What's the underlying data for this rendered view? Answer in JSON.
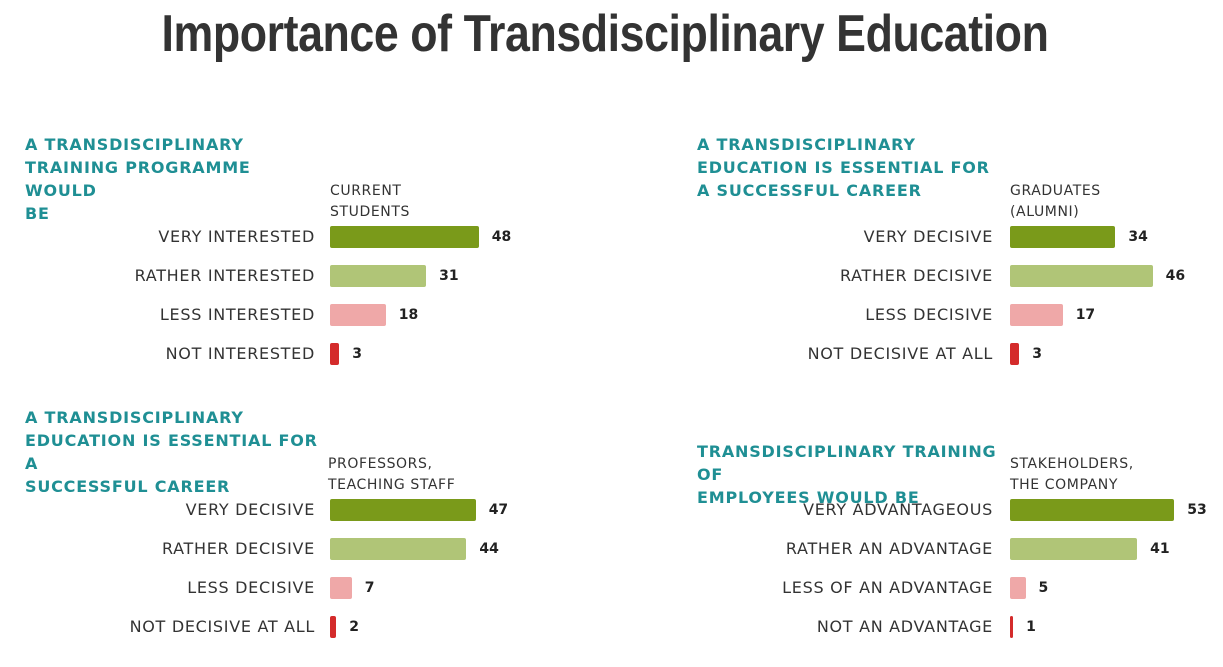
{
  "page": {
    "title": "Importance of Transdisciplinary Education"
  },
  "colors": {
    "very": "#7a9a1a",
    "rather": "#b0c577",
    "less": "#efa8a8",
    "not": "#d42b2b",
    "title_accent": "#1f8f94"
  },
  "panels": [
    {
      "title": "A TRANSDISCIPLINARY\nTRAINING PROGRAMME WOULD\nBE",
      "group": "CURRENT\nSTUDENTS",
      "chart_data": {
        "type": "bar",
        "title": "A TRANSDISCIPLINARY TRAINING PROGRAMME WOULD BE",
        "series": [
          {
            "name": "CURRENT STUDENTS",
            "values": [
              48,
              31,
              18,
              3
            ]
          }
        ],
        "categories": [
          "VERY INTERESTED",
          "RATHER INTERESTED",
          "LESS INTERESTED",
          "NOT INTERESTED"
        ],
        "values": [
          48,
          31,
          18,
          3
        ],
        "color_keys": [
          "very",
          "rather",
          "less",
          "not"
        ],
        "xlim": [
          0,
          55
        ]
      }
    },
    {
      "title": "A TRANSDISCIPLINARY\nEDUCATION IS ESSENTIAL FOR\nA SUCCESSFUL CAREER",
      "group": "GRADUATES\n(ALUMNI)",
      "chart_data": {
        "type": "bar",
        "title": "A TRANSDISCIPLINARY EDUCATION IS ESSENTIAL FOR A SUCCESSFUL CAREER",
        "series": [
          {
            "name": "GRADUATES (ALUMNI)",
            "values": [
              34,
              46,
              17,
              3
            ]
          }
        ],
        "categories": [
          "VERY DECISIVE",
          "RATHER DECISIVE",
          "LESS DECISIVE",
          "NOT DECISIVE AT ALL"
        ],
        "values": [
          34,
          46,
          17,
          3
        ],
        "color_keys": [
          "very",
          "rather",
          "less",
          "not"
        ],
        "xlim": [
          0,
          55
        ]
      }
    },
    {
      "title": "A TRANSDISCIPLINARY\nEDUCATION IS ESSENTIAL FOR A\nSUCCESSFUL CAREER",
      "group": "PROFESSORS,\nTEACHING STAFF",
      "chart_data": {
        "type": "bar",
        "title": "A TRANSDISCIPLINARY EDUCATION IS ESSENTIAL FOR A SUCCESSFUL CAREER",
        "series": [
          {
            "name": "PROFESSORS, TEACHING STAFF",
            "values": [
              47,
              44,
              7,
              2
            ]
          }
        ],
        "categories": [
          "VERY DECISIVE",
          "RATHER DECISIVE",
          "LESS DECISIVE",
          "NOT DECISIVE AT ALL"
        ],
        "values": [
          47,
          44,
          7,
          2
        ],
        "color_keys": [
          "very",
          "rather",
          "less",
          "not"
        ],
        "xlim": [
          0,
          55
        ]
      }
    },
    {
      "title": "TRANSDISCIPLINARY TRAINING OF\nEMPLOYEES WOULD BE",
      "group": "STAKEHOLDERS,\nTHE COMPANY",
      "chart_data": {
        "type": "bar",
        "title": "TRANSDISCIPLINARY TRAINING OF EMPLOYEES WOULD BE",
        "series": [
          {
            "name": "STAKEHOLDERS, THE COMPANY",
            "values": [
              53,
              41,
              5,
              1
            ]
          }
        ],
        "categories": [
          "VERY ADVANTAGEOUS",
          "RATHER AN ADVANTAGE",
          "LESS OF AN ADVANTAGE",
          "NOT AN ADVANTAGE"
        ],
        "values": [
          53,
          41,
          5,
          1
        ],
        "color_keys": [
          "very",
          "rather",
          "less",
          "not"
        ],
        "xlim": [
          0,
          55
        ]
      }
    }
  ]
}
